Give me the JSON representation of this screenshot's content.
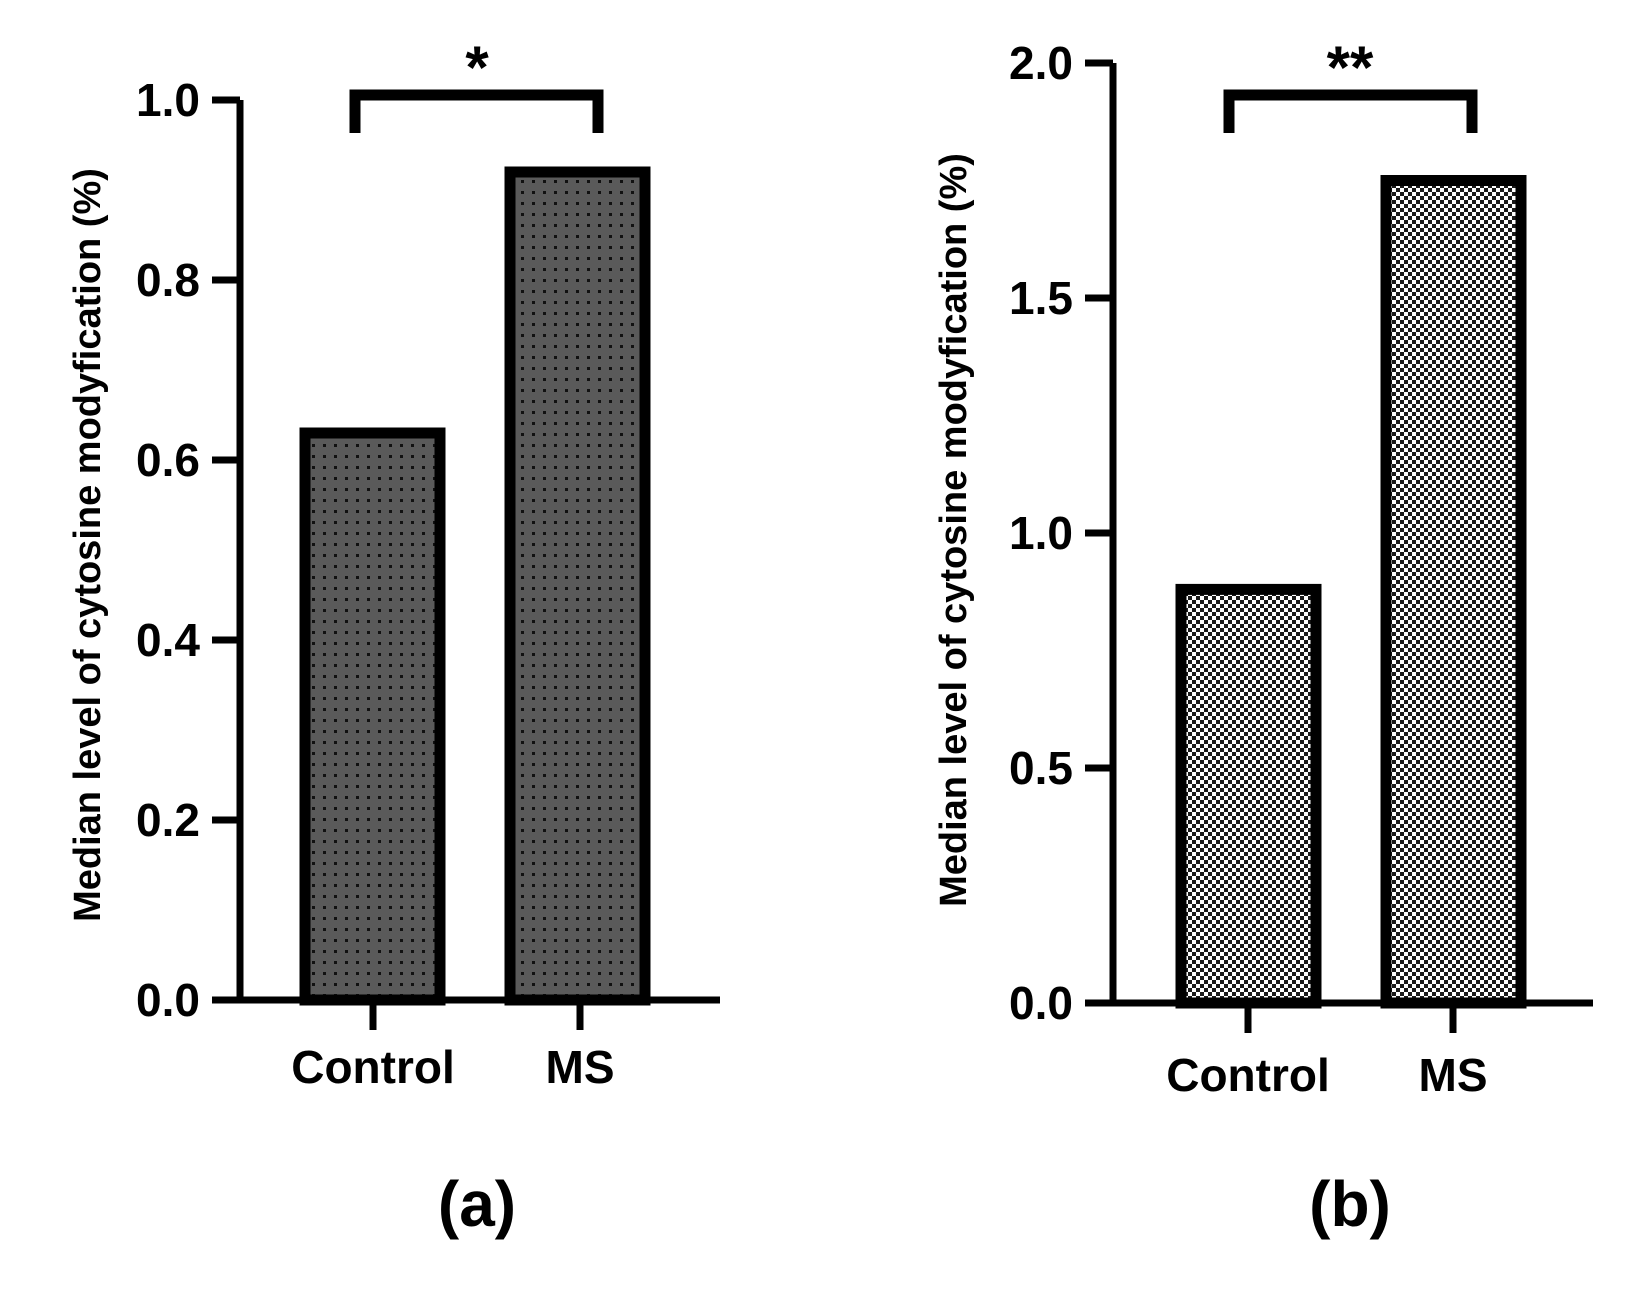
{
  "chart_data": [
    {
      "type": "bar",
      "panel_label": "(a)",
      "categories": [
        "Control",
        "MS"
      ],
      "values": [
        0.63,
        0.92
      ],
      "ylabel": "Median level of cytosine modyfication (%)",
      "xlabel": "",
      "ylim": [
        0,
        1.0
      ],
      "yticks": [
        0.0,
        0.2,
        0.4,
        0.6,
        0.8,
        1.0
      ],
      "ytick_labels": [
        "0.0",
        "0.2",
        "0.4",
        "0.6",
        "0.8",
        "1.0"
      ],
      "significance": "*",
      "bar_fill": "#5a5a5a",
      "bar_pattern": "dots",
      "grid": false
    },
    {
      "type": "bar",
      "panel_label": "(b)",
      "categories": [
        "Control",
        "MS"
      ],
      "values": [
        0.88,
        1.75
      ],
      "ylabel": "Median level of cytosine modyfication (%)",
      "xlabel": "",
      "ylim": [
        0,
        2.0
      ],
      "yticks": [
        0.0,
        0.5,
        1.0,
        1.5,
        2.0
      ],
      "ytick_labels": [
        "0.0",
        "0.5",
        "1.0",
        "1.5",
        "2.0"
      ],
      "significance": "**",
      "bar_fill": "#ffffff",
      "bar_pattern": "checker",
      "grid": false
    }
  ],
  "colors": {
    "axis": "#000000",
    "bar_edge": "#000000",
    "dot": "#111111",
    "checker": "#1a1a1a"
  }
}
